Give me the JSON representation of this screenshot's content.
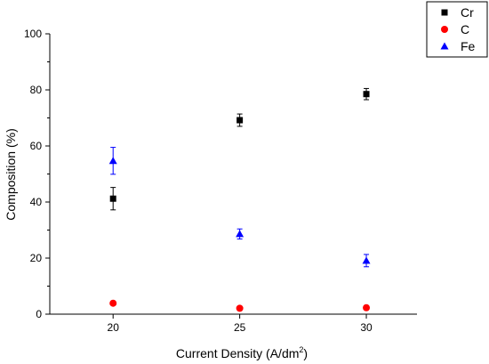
{
  "chart_data": {
    "type": "scatter",
    "xlabel": "Current Density (A/dm",
    "xlabel_sup": "2",
    "xlabel_end": ")",
    "ylabel": "Composition (%)",
    "xlim": [
      17.5,
      32
    ],
    "ylim": [
      0,
      100
    ],
    "x_ticks": [
      20,
      25,
      30
    ],
    "y_ticks": [
      0,
      20,
      40,
      60,
      80,
      100
    ],
    "grid": false,
    "legend_position": "top-right",
    "series": [
      {
        "name": "Cr",
        "color": "#000000",
        "marker": "square",
        "x": [
          20,
          25,
          30
        ],
        "y": [
          41.2,
          69.2,
          78.5
        ],
        "err": [
          4,
          2.2,
          2
        ]
      },
      {
        "name": "C",
        "color": "#ff0000",
        "marker": "circle",
        "x": [
          20,
          25,
          30
        ],
        "y": [
          3.9,
          2.1,
          2.3
        ],
        "err": [
          0.6,
          0.3,
          0.3
        ]
      },
      {
        "name": "Fe",
        "color": "#0000ff",
        "marker": "triangle",
        "x": [
          20,
          25,
          30
        ],
        "y": [
          54.7,
          28.6,
          19.1
        ],
        "err": [
          4.8,
          1.8,
          2.2
        ]
      }
    ]
  }
}
